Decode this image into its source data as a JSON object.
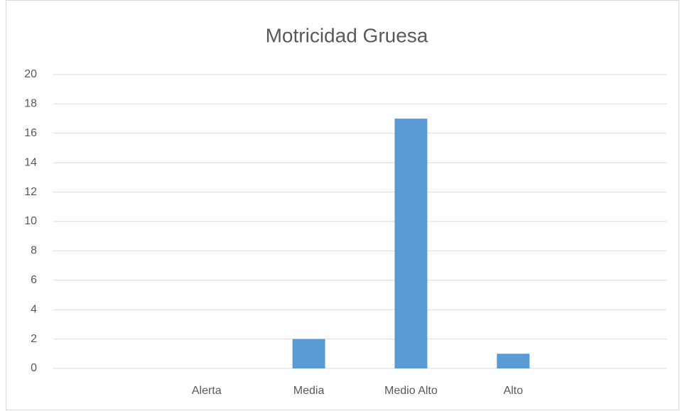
{
  "chart_data": {
    "type": "bar",
    "title": "Motricidad Gruesa",
    "categories": [
      null,
      "Alerta",
      "Media",
      "Medio Alto",
      "Alto",
      null
    ],
    "values": [
      null,
      0,
      2,
      17,
      1,
      null
    ],
    "color": "#5b9bd5",
    "ylim": [
      0,
      20
    ],
    "yticks": [
      0,
      2,
      4,
      6,
      8,
      10,
      12,
      14,
      16,
      18,
      20
    ],
    "grid": true
  }
}
